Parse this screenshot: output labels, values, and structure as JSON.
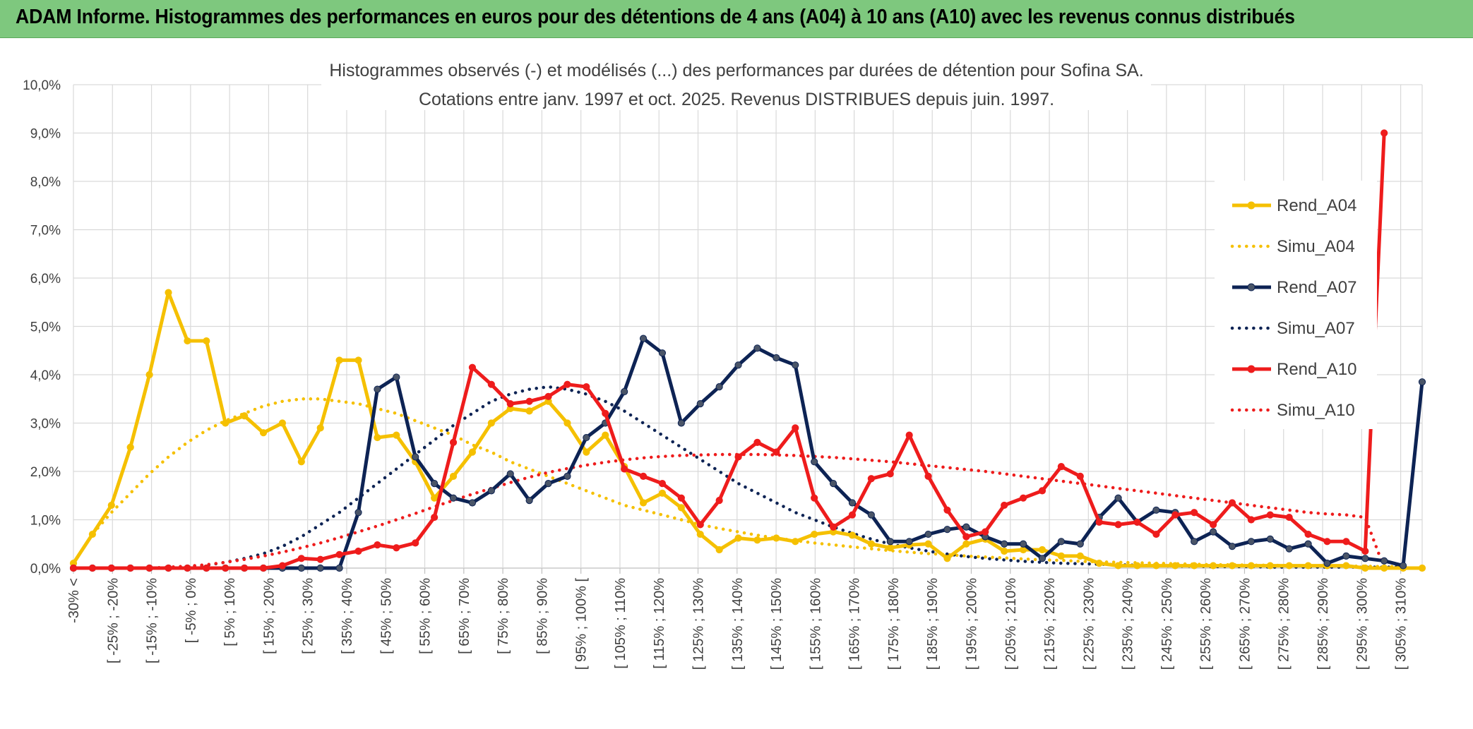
{
  "header": {
    "title": "ADAM Informe. Histogrammes des performances en euros pour des détentions de 4 ans (A04) à 10 ans (A10) avec les revenus connus distribués"
  },
  "chart_data": {
    "type": "line",
    "title_line1": "Histogrammes observés (-) et modélisés (...) des performances par durées de détention pour Sofina SA.",
    "title_line2": "Cotations entre janv. 1997 et oct. 2025. Revenus DISTRIBUES depuis juin. 1997.",
    "ylim": [
      0,
      10
    ],
    "y_ticks": [
      "0,0%",
      "1,0%",
      "2,0%",
      "3,0%",
      "4,0%",
      "5,0%",
      "6,0%",
      "7,0%",
      "8,0%",
      "9,0%",
      "10,0%"
    ],
    "x_tick_labels": [
      "-30% <",
      "[ -25% ; -20%",
      "[ -15% ; -10%",
      "[ -5% ; 0%",
      "[ 5% ; 10%",
      "[ 15% ; 20%",
      "[ 25% ; 30%",
      "[ 35% ; 40%",
      "[ 45% ; 50%",
      "[ 55% ; 60%",
      "[ 65% ; 70%",
      "[ 75% ; 80%",
      "[ 85% ; 90%",
      "[ 95% ; 100% [",
      "[ 105% ; 110%",
      "[ 115% ; 120%",
      "[ 125% ; 130%",
      "[ 135% ; 140%",
      "[ 145% ; 150%",
      "[ 155% ; 160%",
      "[ 165% ; 170%",
      "[ 175% ; 180%",
      "[ 185% ; 190%",
      "[ 195% ; 200%",
      "[ 205% ; 210%",
      "[ 215% ; 220%",
      "[ 225% ; 230%",
      "[ 235% ; 240%",
      "[ 245% ; 250%",
      "[ 255% ; 260%",
      "[ 265% ; 270%",
      "[ 275% ; 280%",
      "[ 285% ; 290%",
      "[ 295% ; 300%",
      "[ 305% ; 310%"
    ],
    "legend_position": "right",
    "series": [
      {
        "name": "Rend_A04",
        "style": "solid",
        "markers": true,
        "color": "#f5c000",
        "values": [
          0.1,
          0.7,
          1.3,
          2.5,
          4.0,
          5.7,
          4.7,
          4.7,
          3.0,
          3.15,
          2.8,
          3.0,
          2.2,
          2.9,
          4.3,
          4.3,
          2.7,
          2.75,
          2.2,
          1.45,
          1.9,
          2.4,
          3.0,
          3.3,
          3.25,
          3.45,
          3.0,
          2.4,
          2.75,
          2.1,
          1.35,
          1.55,
          1.25,
          0.7,
          0.38,
          0.62,
          0.58,
          0.62,
          0.55,
          0.7,
          0.75,
          0.68,
          0.5,
          0.42,
          0.48,
          0.5,
          0.2,
          0.5,
          0.6,
          0.35,
          0.38,
          0.38,
          0.25,
          0.25,
          0.1,
          0.05,
          0.05,
          0.05,
          0.05,
          0.05,
          0.05,
          0.05,
          0.05,
          0.05,
          0.05,
          0.05,
          0.05,
          0.05,
          0.0,
          0.0,
          0.0,
          0.0
        ]
      },
      {
        "name": "Simu_A04",
        "style": "dotted",
        "markers": false,
        "color": "#f5c000",
        "values": [
          0.1,
          0.7,
          1.15,
          1.55,
          1.95,
          2.3,
          2.6,
          2.85,
          3.05,
          3.2,
          3.35,
          3.45,
          3.5,
          3.5,
          3.45,
          3.4,
          3.3,
          3.2,
          3.05,
          2.9,
          2.75,
          2.55,
          2.4,
          2.2,
          2.05,
          1.9,
          1.75,
          1.6,
          1.45,
          1.3,
          1.2,
          1.1,
          1.0,
          0.9,
          0.82,
          0.75,
          0.68,
          0.62,
          0.57,
          0.52,
          0.48,
          0.44,
          0.4,
          0.36,
          0.33,
          0.3,
          0.28,
          0.25,
          0.23,
          0.21,
          0.19,
          0.17,
          0.16,
          0.14,
          0.13,
          0.12,
          0.11,
          0.1,
          0.09,
          0.08,
          0.07,
          0.07,
          0.06,
          0.06,
          0.05,
          0.05,
          0.04,
          0.04,
          0.04,
          0.03,
          0.03
        ]
      },
      {
        "name": "Rend_A07",
        "style": "solid",
        "markers": true,
        "color": "#0d2354",
        "values": [
          0.0,
          0.0,
          0.0,
          0.0,
          0.0,
          0.0,
          0.0,
          0.0,
          0.0,
          0.0,
          0.0,
          0.0,
          0.0,
          0.0,
          0.0,
          1.15,
          3.7,
          3.95,
          2.3,
          1.75,
          1.45,
          1.35,
          1.6,
          1.95,
          1.4,
          1.75,
          1.9,
          2.7,
          3.0,
          3.65,
          4.75,
          4.45,
          3.0,
          3.4,
          3.75,
          4.2,
          4.55,
          4.35,
          4.2,
          2.2,
          1.75,
          1.35,
          1.1,
          0.55,
          0.55,
          0.7,
          0.8,
          0.85,
          0.65,
          0.5,
          0.5,
          0.2,
          0.55,
          0.5,
          1.05,
          1.45,
          0.95,
          1.2,
          1.15,
          0.55,
          0.75,
          0.45,
          0.55,
          0.6,
          0.4,
          0.5,
          0.1,
          0.25,
          0.2,
          0.15,
          0.05,
          3.85
        ]
      },
      {
        "name": "Simu_A07",
        "style": "dotted",
        "markers": false,
        "color": "#0d2354",
        "values": [
          0.0,
          0.0,
          0.0,
          0.0,
          0.0,
          0.0,
          0.03,
          0.06,
          0.12,
          0.2,
          0.3,
          0.45,
          0.65,
          0.9,
          1.15,
          1.45,
          1.75,
          2.05,
          2.35,
          2.65,
          2.95,
          3.2,
          3.45,
          3.6,
          3.7,
          3.75,
          3.7,
          3.6,
          3.45,
          3.25,
          3.0,
          2.75,
          2.5,
          2.25,
          2.0,
          1.75,
          1.55,
          1.35,
          1.15,
          1.0,
          0.85,
          0.72,
          0.6,
          0.5,
          0.42,
          0.35,
          0.29,
          0.24,
          0.2,
          0.17,
          0.14,
          0.12,
          0.1,
          0.09,
          0.08,
          0.07,
          0.06,
          0.05,
          0.04,
          0.04,
          0.03,
          0.03,
          0.03,
          0.02,
          0.02,
          0.02,
          0.02,
          0.02,
          0.02,
          0.02,
          0.02
        ]
      },
      {
        "name": "Rend_A10",
        "style": "solid",
        "markers": true,
        "color": "#ee1c1c",
        "values": [
          0.0,
          0.0,
          0.0,
          0.0,
          0.0,
          0.0,
          0.0,
          0.0,
          0.0,
          0.0,
          0.0,
          0.05,
          0.2,
          0.18,
          0.28,
          0.35,
          0.48,
          0.42,
          0.52,
          1.05,
          2.6,
          4.15,
          3.8,
          3.4,
          3.45,
          3.55,
          3.8,
          3.75,
          3.2,
          2.05,
          1.9,
          1.75,
          1.45,
          0.9,
          1.4,
          2.3,
          2.6,
          2.4,
          2.9,
          1.45,
          0.85,
          1.1,
          1.85,
          1.95,
          2.75,
          1.9,
          1.2,
          0.65,
          0.75,
          1.3,
          1.45,
          1.6,
          2.1,
          1.9,
          0.95,
          0.9,
          0.95,
          0.7,
          1.1,
          1.15,
          0.9,
          1.35,
          1.0,
          1.1,
          1.05,
          0.7,
          0.55,
          0.55,
          0.35,
          9.0
        ]
      },
      {
        "name": "Simu_A10",
        "style": "dotted",
        "markers": false,
        "color": "#ee1c1c",
        "values": [
          0.0,
          0.0,
          0.0,
          0.0,
          0.0,
          0.02,
          0.04,
          0.07,
          0.12,
          0.18,
          0.25,
          0.33,
          0.42,
          0.52,
          0.63,
          0.75,
          0.87,
          1.0,
          1.13,
          1.27,
          1.4,
          1.53,
          1.65,
          1.77,
          1.88,
          1.98,
          2.06,
          2.13,
          2.19,
          2.24,
          2.28,
          2.31,
          2.33,
          2.34,
          2.35,
          2.35,
          2.35,
          2.34,
          2.33,
          2.31,
          2.29,
          2.26,
          2.23,
          2.2,
          2.16,
          2.12,
          2.08,
          2.04,
          2.0,
          1.95,
          1.9,
          1.85,
          1.8,
          1.75,
          1.7,
          1.65,
          1.6,
          1.55,
          1.5,
          1.45,
          1.4,
          1.35,
          1.3,
          1.25,
          1.2,
          1.15,
          1.12,
          1.1,
          1.05,
          0.0
        ]
      }
    ]
  }
}
